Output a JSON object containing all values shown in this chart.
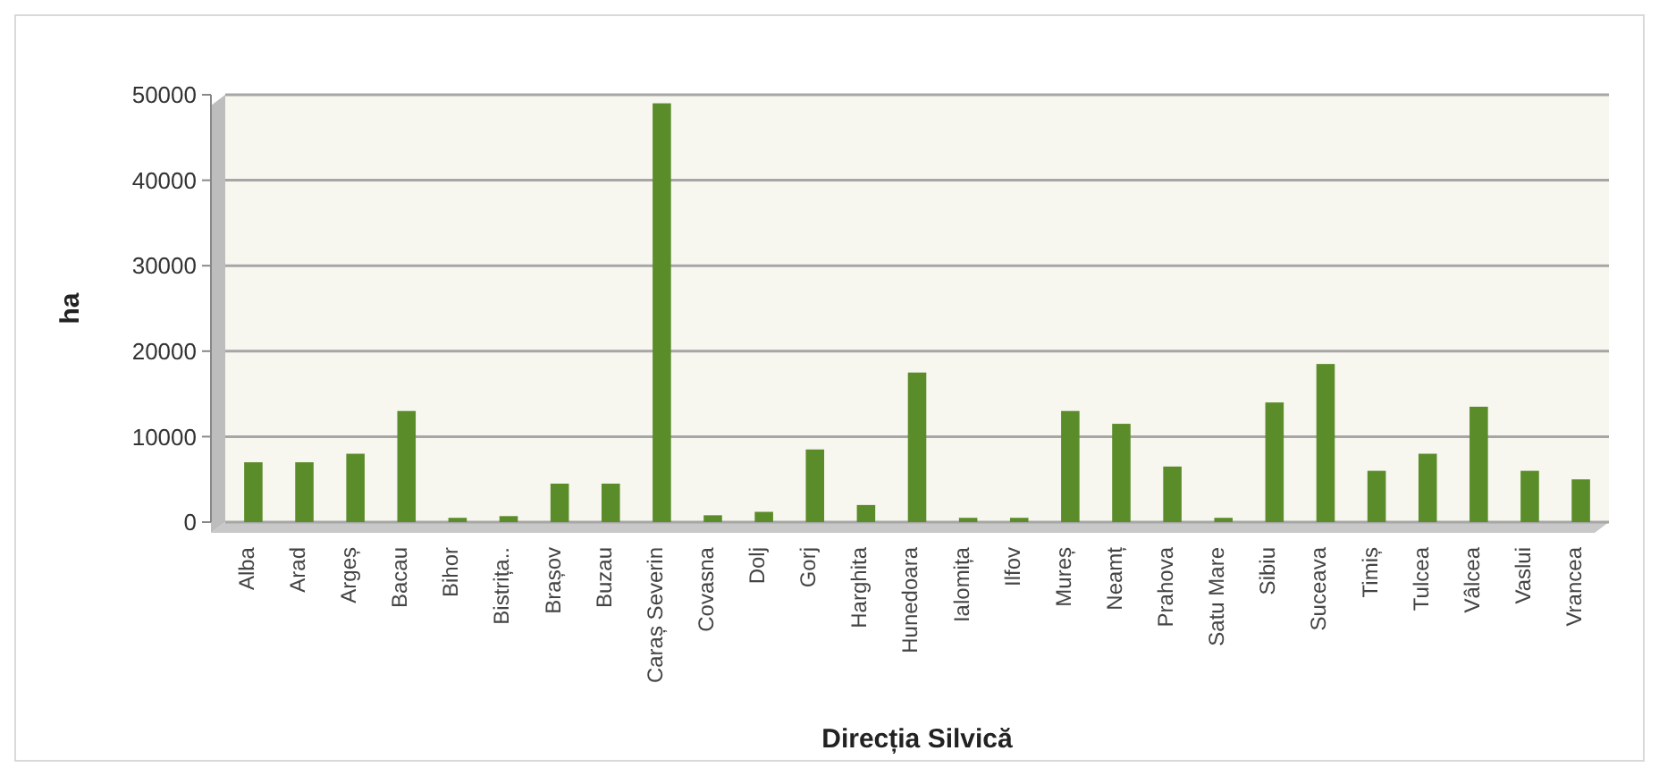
{
  "chart_data": {
    "type": "bar",
    "xlabel": "Direcția Silvică",
    "ylabel": "ha",
    "categories": [
      "Alba",
      "Arad",
      "Argeș",
      "Bacau",
      "Bihor",
      "Bistrița..",
      "Brașov",
      "Buzau",
      "Caraș Severin",
      "Covasna",
      "Dolj",
      "Gorj",
      "Harghita",
      "Hunedoara",
      "Ialomița",
      "Ilfov",
      "Mureș",
      "Neamț",
      "Prahova",
      "Satu Mare",
      "Sibiu",
      "Suceava",
      "Timiș",
      "Tulcea",
      "Vâlcea",
      "Vaslui",
      "Vrancea"
    ],
    "values": [
      7000,
      7000,
      8000,
      13000,
      500,
      700,
      4500,
      4500,
      49000,
      800,
      1200,
      8500,
      2000,
      17500,
      500,
      500,
      13000,
      11500,
      6500,
      500,
      14000,
      18500,
      6000,
      8000,
      13500,
      6000,
      5000
    ],
    "color": "#5b8c2a",
    "ylim": [
      0,
      50000
    ],
    "yticks": [
      0,
      10000,
      20000,
      30000,
      40000,
      50000
    ],
    "grid": "y"
  }
}
